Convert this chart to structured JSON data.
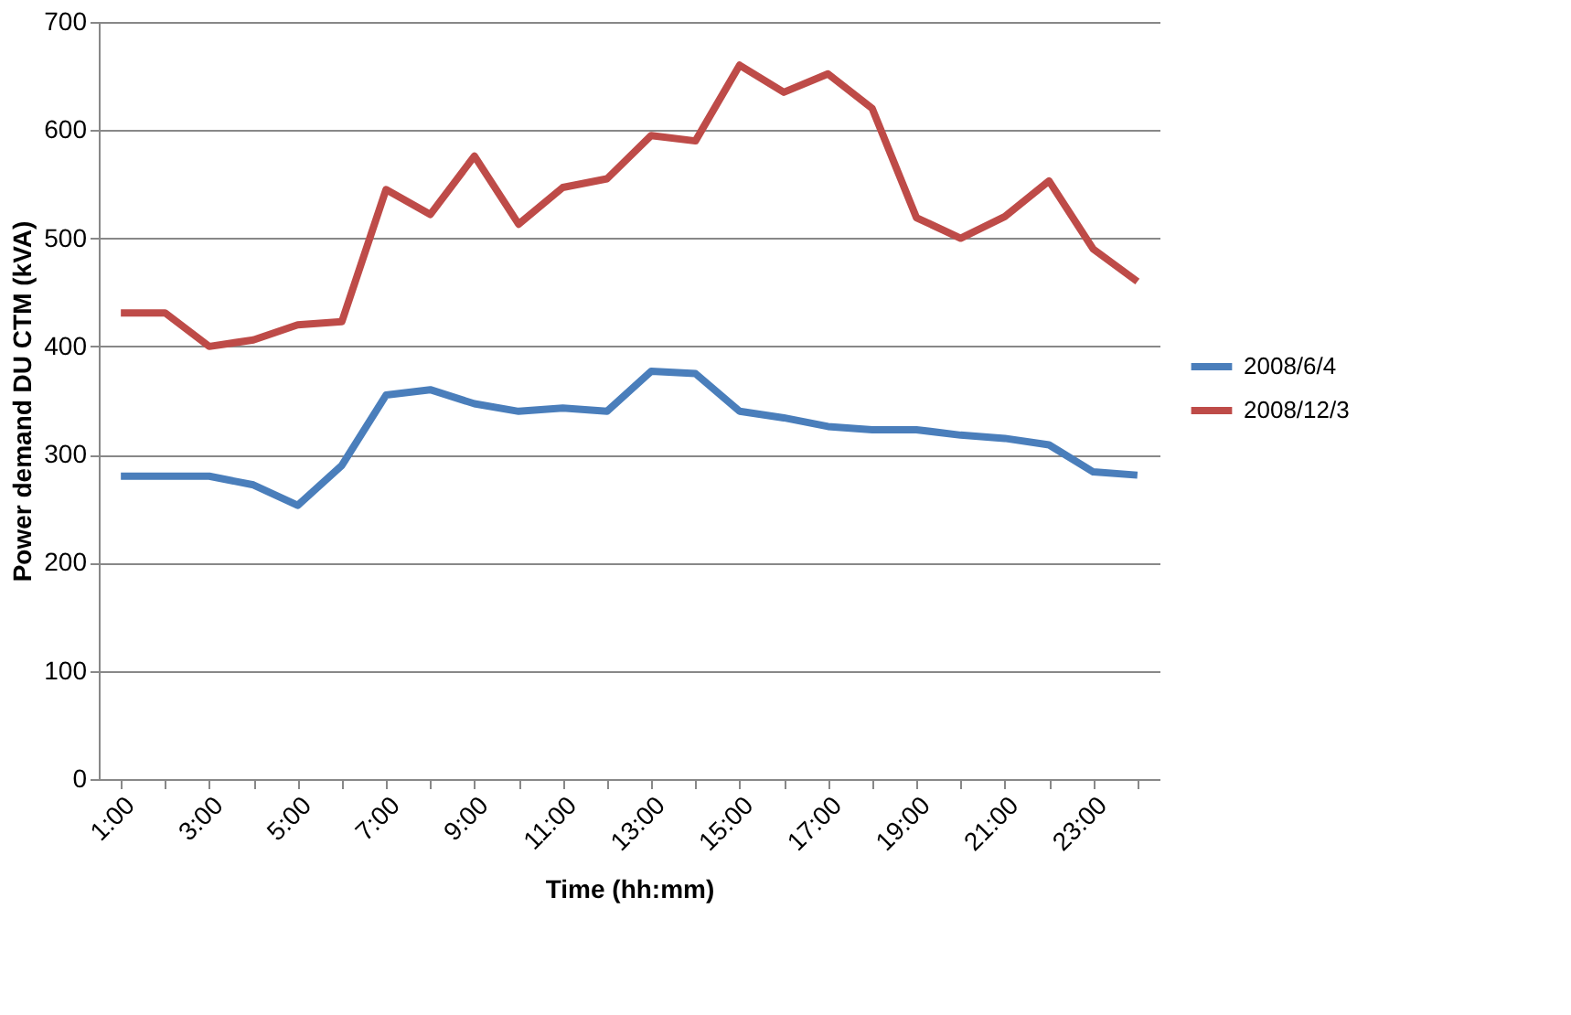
{
  "chart_data": {
    "type": "line",
    "xlabel": "Time (hh:mm)",
    "ylabel": "Power demand DU CTM (kVA)",
    "categories": [
      "1:00",
      null,
      "3:00",
      null,
      "5:00",
      null,
      "7:00",
      null,
      "9:00",
      null,
      "11:00",
      null,
      "13:00",
      null,
      "15:00",
      null,
      "17:00",
      null,
      "19:00",
      null,
      "21:00",
      null,
      "23:00",
      null
    ],
    "series": [
      {
        "name": "2008/6/4",
        "color": "#4a7ebb",
        "values": [
          280,
          280,
          280,
          272,
          253,
          290,
          355,
          360,
          347,
          340,
          343,
          340,
          377,
          375,
          340,
          334,
          326,
          323,
          323,
          318,
          315,
          309,
          284,
          281
        ]
      },
      {
        "name": "2008/12/3",
        "color": "#be4b48",
        "values": [
          431,
          431,
          400,
          406,
          420,
          423,
          545,
          522,
          576,
          513,
          547,
          555,
          595,
          590,
          660,
          635,
          652,
          620,
          519,
          500,
          520,
          553,
          490,
          460
        ]
      }
    ],
    "ylim": [
      0,
      700
    ],
    "yticks": [
      0,
      100,
      200,
      300,
      400,
      500,
      600,
      700
    ],
    "grid": "y",
    "legend": "right",
    "marker": "none",
    "line_style": "solid"
  }
}
